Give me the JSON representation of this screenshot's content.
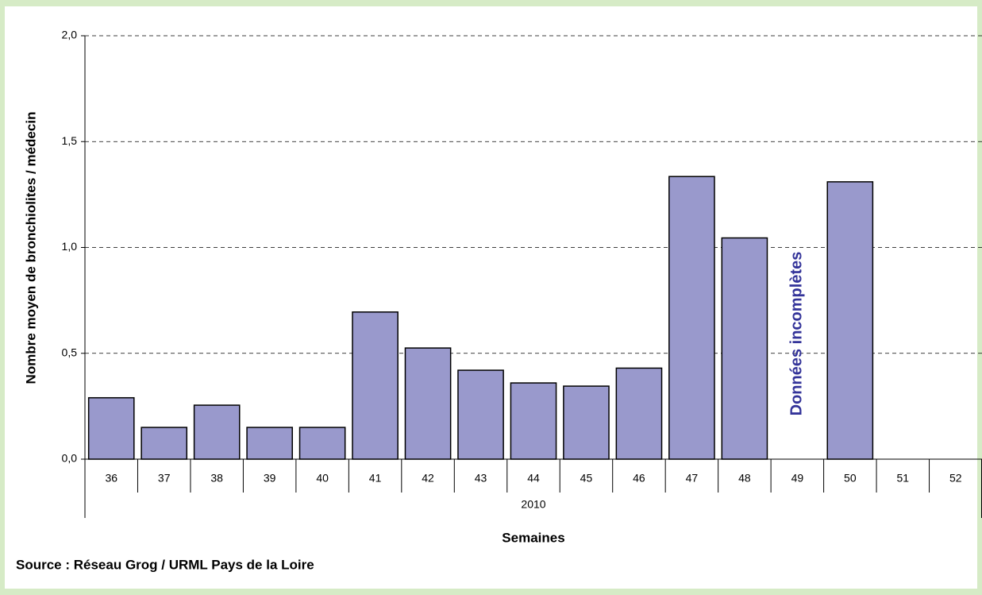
{
  "chart_data": {
    "type": "bar",
    "y_label": "Nombre moyen de bronchiolites  / médecin",
    "x_label": "Semaines",
    "x_group": "2010",
    "source": "Source : Réseau Grog / URML Pays de la Loire",
    "annotation": "Données incomplètes",
    "categories": [
      "36",
      "37",
      "38",
      "39",
      "40",
      "41",
      "42",
      "43",
      "44",
      "45",
      "46",
      "47",
      "48",
      "49",
      "50",
      "51",
      "52"
    ],
    "values": [
      0.29,
      0.15,
      0.255,
      0.15,
      0.15,
      0.695,
      0.525,
      0.42,
      0.36,
      0.345,
      0.43,
      1.335,
      1.045,
      null,
      1.31,
      null,
      null
    ],
    "color": "#9999cc",
    "ylim": [
      0,
      2
    ],
    "yticks": [
      {
        "value": 0,
        "label": "0,0"
      },
      {
        "value": 0.5,
        "label": "0,5"
      },
      {
        "value": 1,
        "label": "1,0"
      },
      {
        "value": 1.5,
        "label": "1,5"
      },
      {
        "value": 2,
        "label": "2,0"
      }
    ],
    "grid": true
  }
}
